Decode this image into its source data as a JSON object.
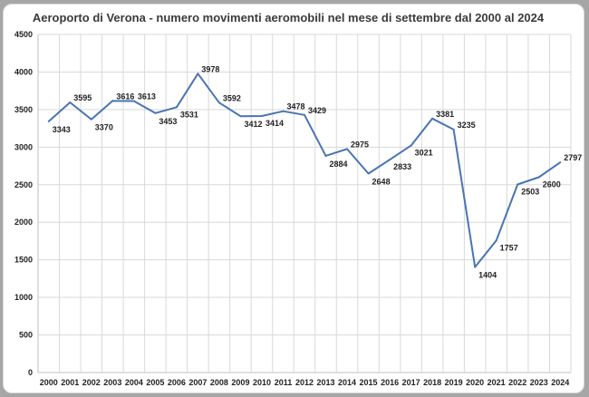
{
  "chart_data": {
    "type": "line",
    "title": "Aeroporto di Verona - numero movimenti aeromobili nel mese di settembre dal 2000 al 2024",
    "xlabel": "",
    "ylabel": "",
    "categories": [
      "2000",
      "2001",
      "2002",
      "2003",
      "2004",
      "2005",
      "2006",
      "2007",
      "2008",
      "2009",
      "2010",
      "2011",
      "2012",
      "2013",
      "2014",
      "2015",
      "2016",
      "2017",
      "2018",
      "2019",
      "2020",
      "2021",
      "2022",
      "2023",
      "2024"
    ],
    "series": [
      {
        "values": [
          3343,
          3595,
          3370,
          3616,
          3613,
          3453,
          3531,
          3978,
          3592,
          3412,
          3414,
          3478,
          3429,
          2884,
          2975,
          2648,
          2833,
          3021,
          3381,
          3235,
          1404,
          1757,
          2503,
          2600,
          2797
        ]
      }
    ],
    "ylim": [
      0,
      4500
    ],
    "yticks": [
      0,
      500,
      1000,
      1500,
      2000,
      2500,
      3000,
      3500,
      4000,
      4500
    ],
    "grid": true,
    "legend": "none",
    "data_labels": true,
    "colors": {
      "line": "#4a74b3",
      "grid": "#d9d9d9",
      "axis": "#bfbfbf",
      "text": "#222222"
    }
  }
}
